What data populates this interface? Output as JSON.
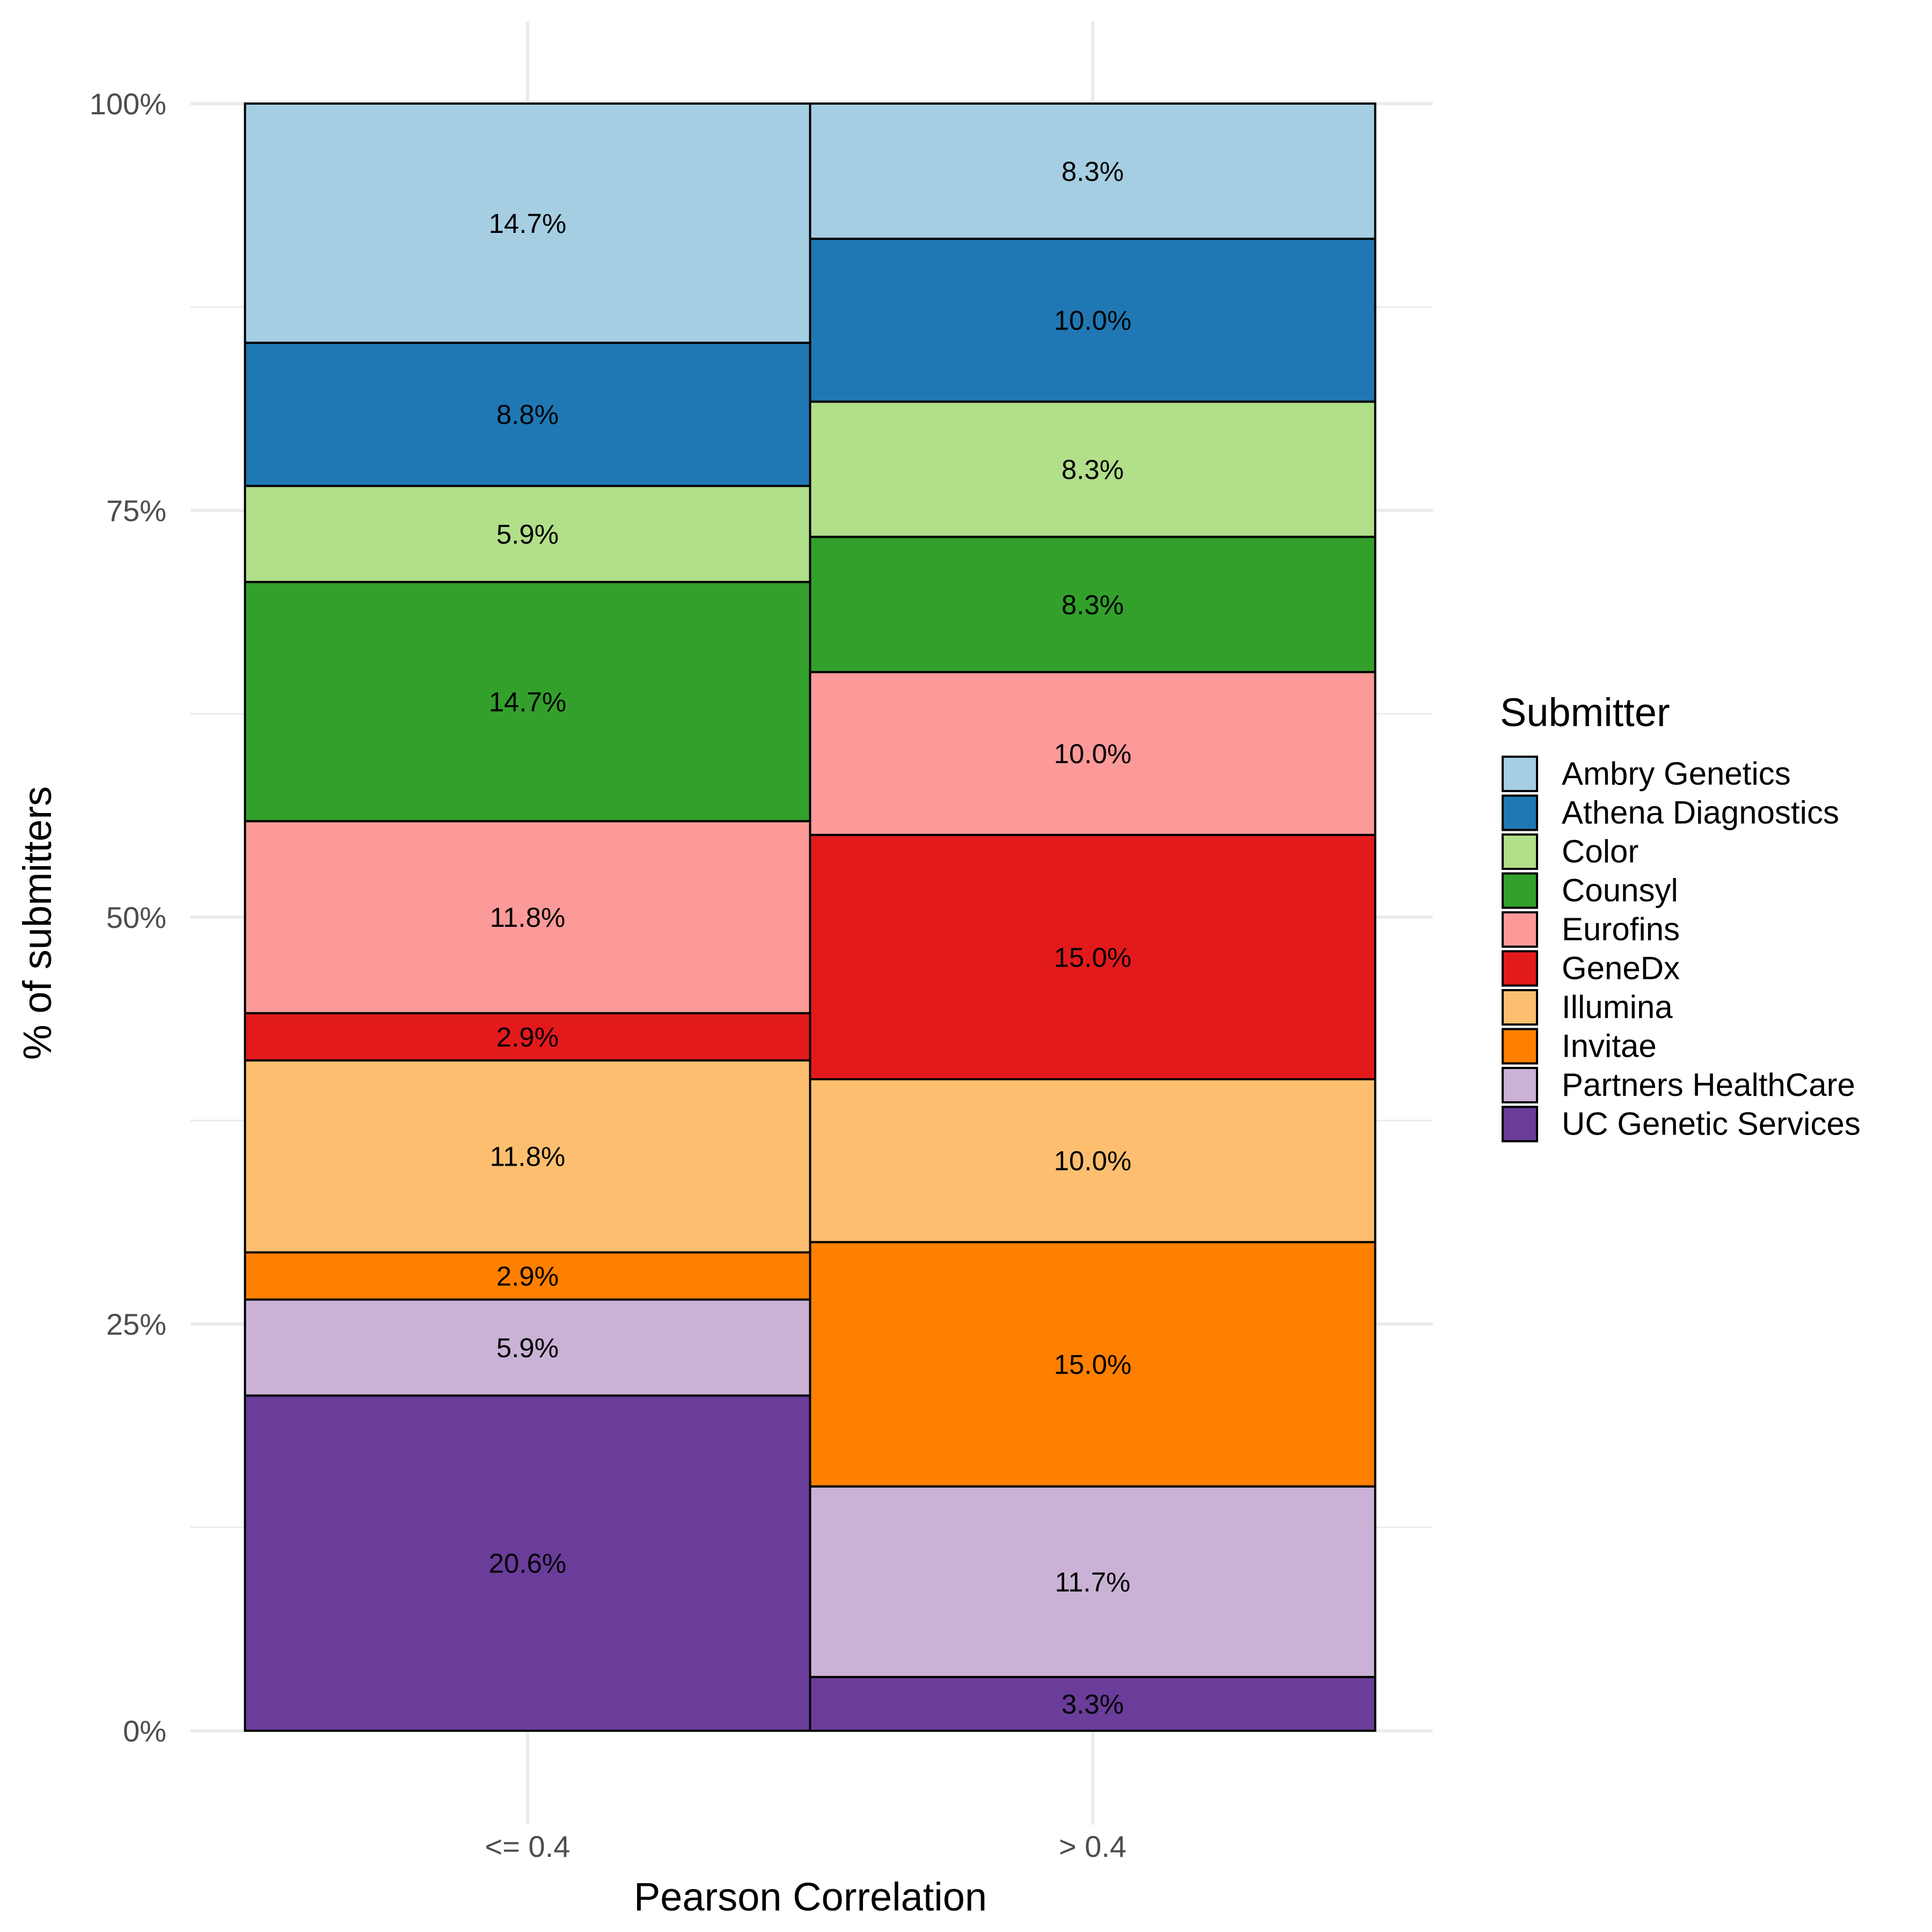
{
  "chart_data": {
    "type": "bar",
    "stacked": true,
    "xlabel": "Pearson Correlation",
    "ylabel": "% of submitters",
    "categories": [
      "<= 0.4",
      "> 0.4"
    ],
    "ylim": [
      0,
      100
    ],
    "yticks": [
      0,
      25,
      50,
      75,
      100
    ],
    "ytick_labels": [
      "0%",
      "25%",
      "50%",
      "75%",
      "100%"
    ],
    "grid": true,
    "legend": {
      "title": "Submitter",
      "position": "right"
    },
    "series": [
      {
        "name": "UC Genetic Services",
        "color": "#6A3D9A",
        "values": [
          20.6,
          3.3
        ],
        "labels": [
          "20.6%",
          "3.3%"
        ]
      },
      {
        "name": "Partners HealthCare",
        "color": "#CAB2D6",
        "values": [
          5.9,
          11.7
        ],
        "labels": [
          "5.9%",
          "11.7%"
        ]
      },
      {
        "name": "Invitae",
        "color": "#FF7F00",
        "values": [
          2.9,
          15.0
        ],
        "labels": [
          "2.9%",
          "15.0%"
        ]
      },
      {
        "name": "Illumina",
        "color": "#FDBF6F",
        "values": [
          11.8,
          10.0
        ],
        "labels": [
          "11.8%",
          "10.0%"
        ]
      },
      {
        "name": "GeneDx",
        "color": "#E31A1C",
        "values": [
          2.9,
          15.0
        ],
        "labels": [
          "2.9%",
          "15.0%"
        ]
      },
      {
        "name": "Eurofins",
        "color": "#FB9A99",
        "values": [
          11.8,
          10.0
        ],
        "labels": [
          "11.8%",
          "10.0%"
        ]
      },
      {
        "name": "Counsyl",
        "color": "#33A02C",
        "values": [
          14.7,
          8.3
        ],
        "labels": [
          "14.7%",
          "8.3%"
        ]
      },
      {
        "name": "Color",
        "color": "#B2DF8A",
        "values": [
          5.9,
          8.3
        ],
        "labels": [
          "5.9%",
          "8.3%"
        ]
      },
      {
        "name": "Athena Diagnostics",
        "color": "#1F78B4",
        "values": [
          8.8,
          10.0
        ],
        "labels": [
          "8.8%",
          "10.0%"
        ]
      },
      {
        "name": "Ambry Genetics",
        "color": "#A6CEE3",
        "values": [
          14.7,
          8.3
        ],
        "labels": [
          "14.7%",
          "8.3%"
        ]
      }
    ],
    "legend_order": [
      "Ambry Genetics",
      "Athena Diagnostics",
      "Color",
      "Counsyl",
      "Eurofins",
      "GeneDx",
      "Illumina",
      "Invitae",
      "Partners HealthCare",
      "UC Genetic Services"
    ]
  }
}
